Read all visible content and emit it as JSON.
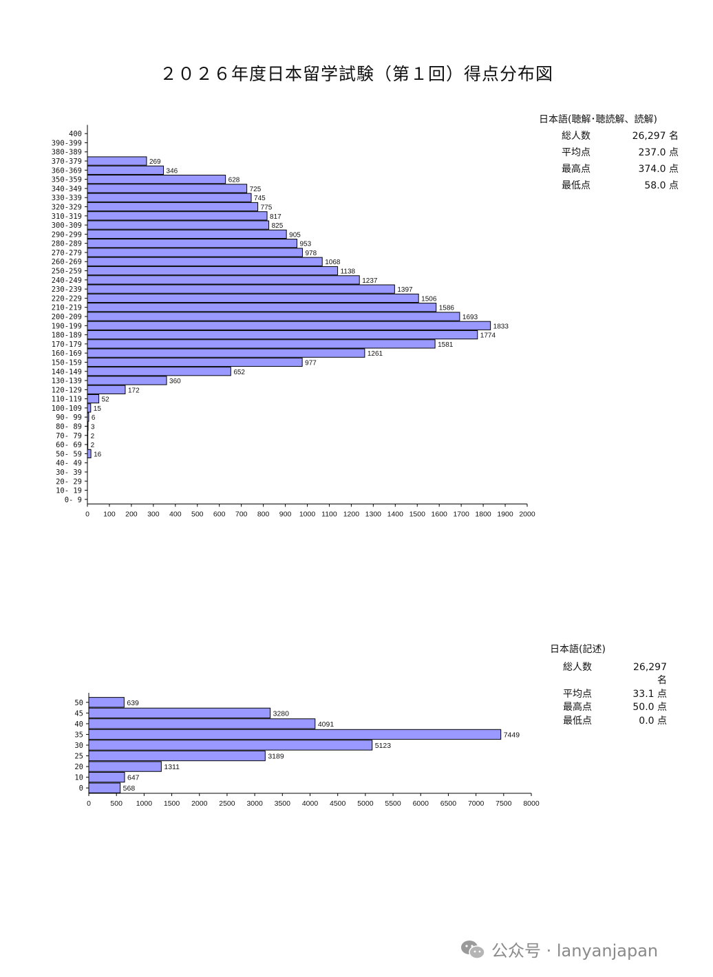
{
  "title": "２０２６年度日本留学試験（第１回）得点分布図",
  "colors": {
    "bar": "#9999ff",
    "bar_stroke": "#000000"
  },
  "stats1": {
    "header": "日本語(聴解･聴読解、読解)",
    "rows": [
      {
        "label": "総人数",
        "value": "26,297 名"
      },
      {
        "label": "平均点",
        "value": "237.0 点"
      },
      {
        "label": "最高点",
        "value": "374.0 点"
      },
      {
        "label": "最低点",
        "value": "58.0 点"
      }
    ]
  },
  "stats2": {
    "header": "日本語(記述)",
    "rows": [
      {
        "label": "総人数",
        "value": "26,297名"
      },
      {
        "label": "平均点",
        "value": "33.1 点"
      },
      {
        "label": "最高点",
        "value": "50.0 点"
      },
      {
        "label": "最低点",
        "value": "0.0 点"
      }
    ]
  },
  "watermark": {
    "text": "公众号 · lanyanjapan",
    "icon": "wechat-icon"
  },
  "chart_data": [
    {
      "type": "bar",
      "orientation": "horizontal",
      "categories": [
        "400",
        "390-399",
        "380-389",
        "370-379",
        "360-369",
        "350-359",
        "340-349",
        "330-339",
        "320-329",
        "310-319",
        "300-309",
        "290-299",
        "280-289",
        "270-279",
        "260-269",
        "250-259",
        "240-249",
        "230-239",
        "220-229",
        "210-219",
        "200-209",
        "190-199",
        "180-189",
        "170-179",
        "160-169",
        "150-159",
        "140-149",
        "130-139",
        "120-129",
        "110-119",
        "100-109",
        "90- 99",
        "80- 89",
        "70- 79",
        "60- 69",
        "50- 59",
        "40- 49",
        "30- 39",
        "20- 29",
        "10- 19",
        "0- 9"
      ],
      "values": [
        null,
        null,
        null,
        269,
        346,
        628,
        725,
        745,
        775,
        817,
        825,
        905,
        953,
        978,
        1068,
        1138,
        1237,
        1397,
        1506,
        1586,
        1693,
        1833,
        1774,
        1581,
        1261,
        977,
        652,
        360,
        172,
        52,
        15,
        6,
        3,
        2,
        2,
        16,
        null,
        null,
        null,
        null,
        null
      ],
      "xlim": [
        0,
        2000
      ],
      "xticks": [
        0,
        100,
        200,
        300,
        400,
        500,
        600,
        700,
        800,
        900,
        1000,
        1100,
        1200,
        1300,
        1400,
        1500,
        1600,
        1700,
        1800,
        1900,
        2000
      ],
      "grid": false
    },
    {
      "type": "bar",
      "orientation": "horizontal",
      "categories": [
        "50",
        "45",
        "40",
        "35",
        "30",
        "25",
        "20",
        "10",
        "0"
      ],
      "values": [
        639,
        3280,
        4091,
        7449,
        5123,
        3189,
        1311,
        647,
        568
      ],
      "xlim": [
        0,
        8000
      ],
      "xticks": [
        0,
        500,
        1000,
        1500,
        2000,
        2500,
        3000,
        3500,
        4000,
        4500,
        5000,
        5500,
        6000,
        6500,
        7000,
        7500,
        8000
      ],
      "grid": false
    }
  ]
}
